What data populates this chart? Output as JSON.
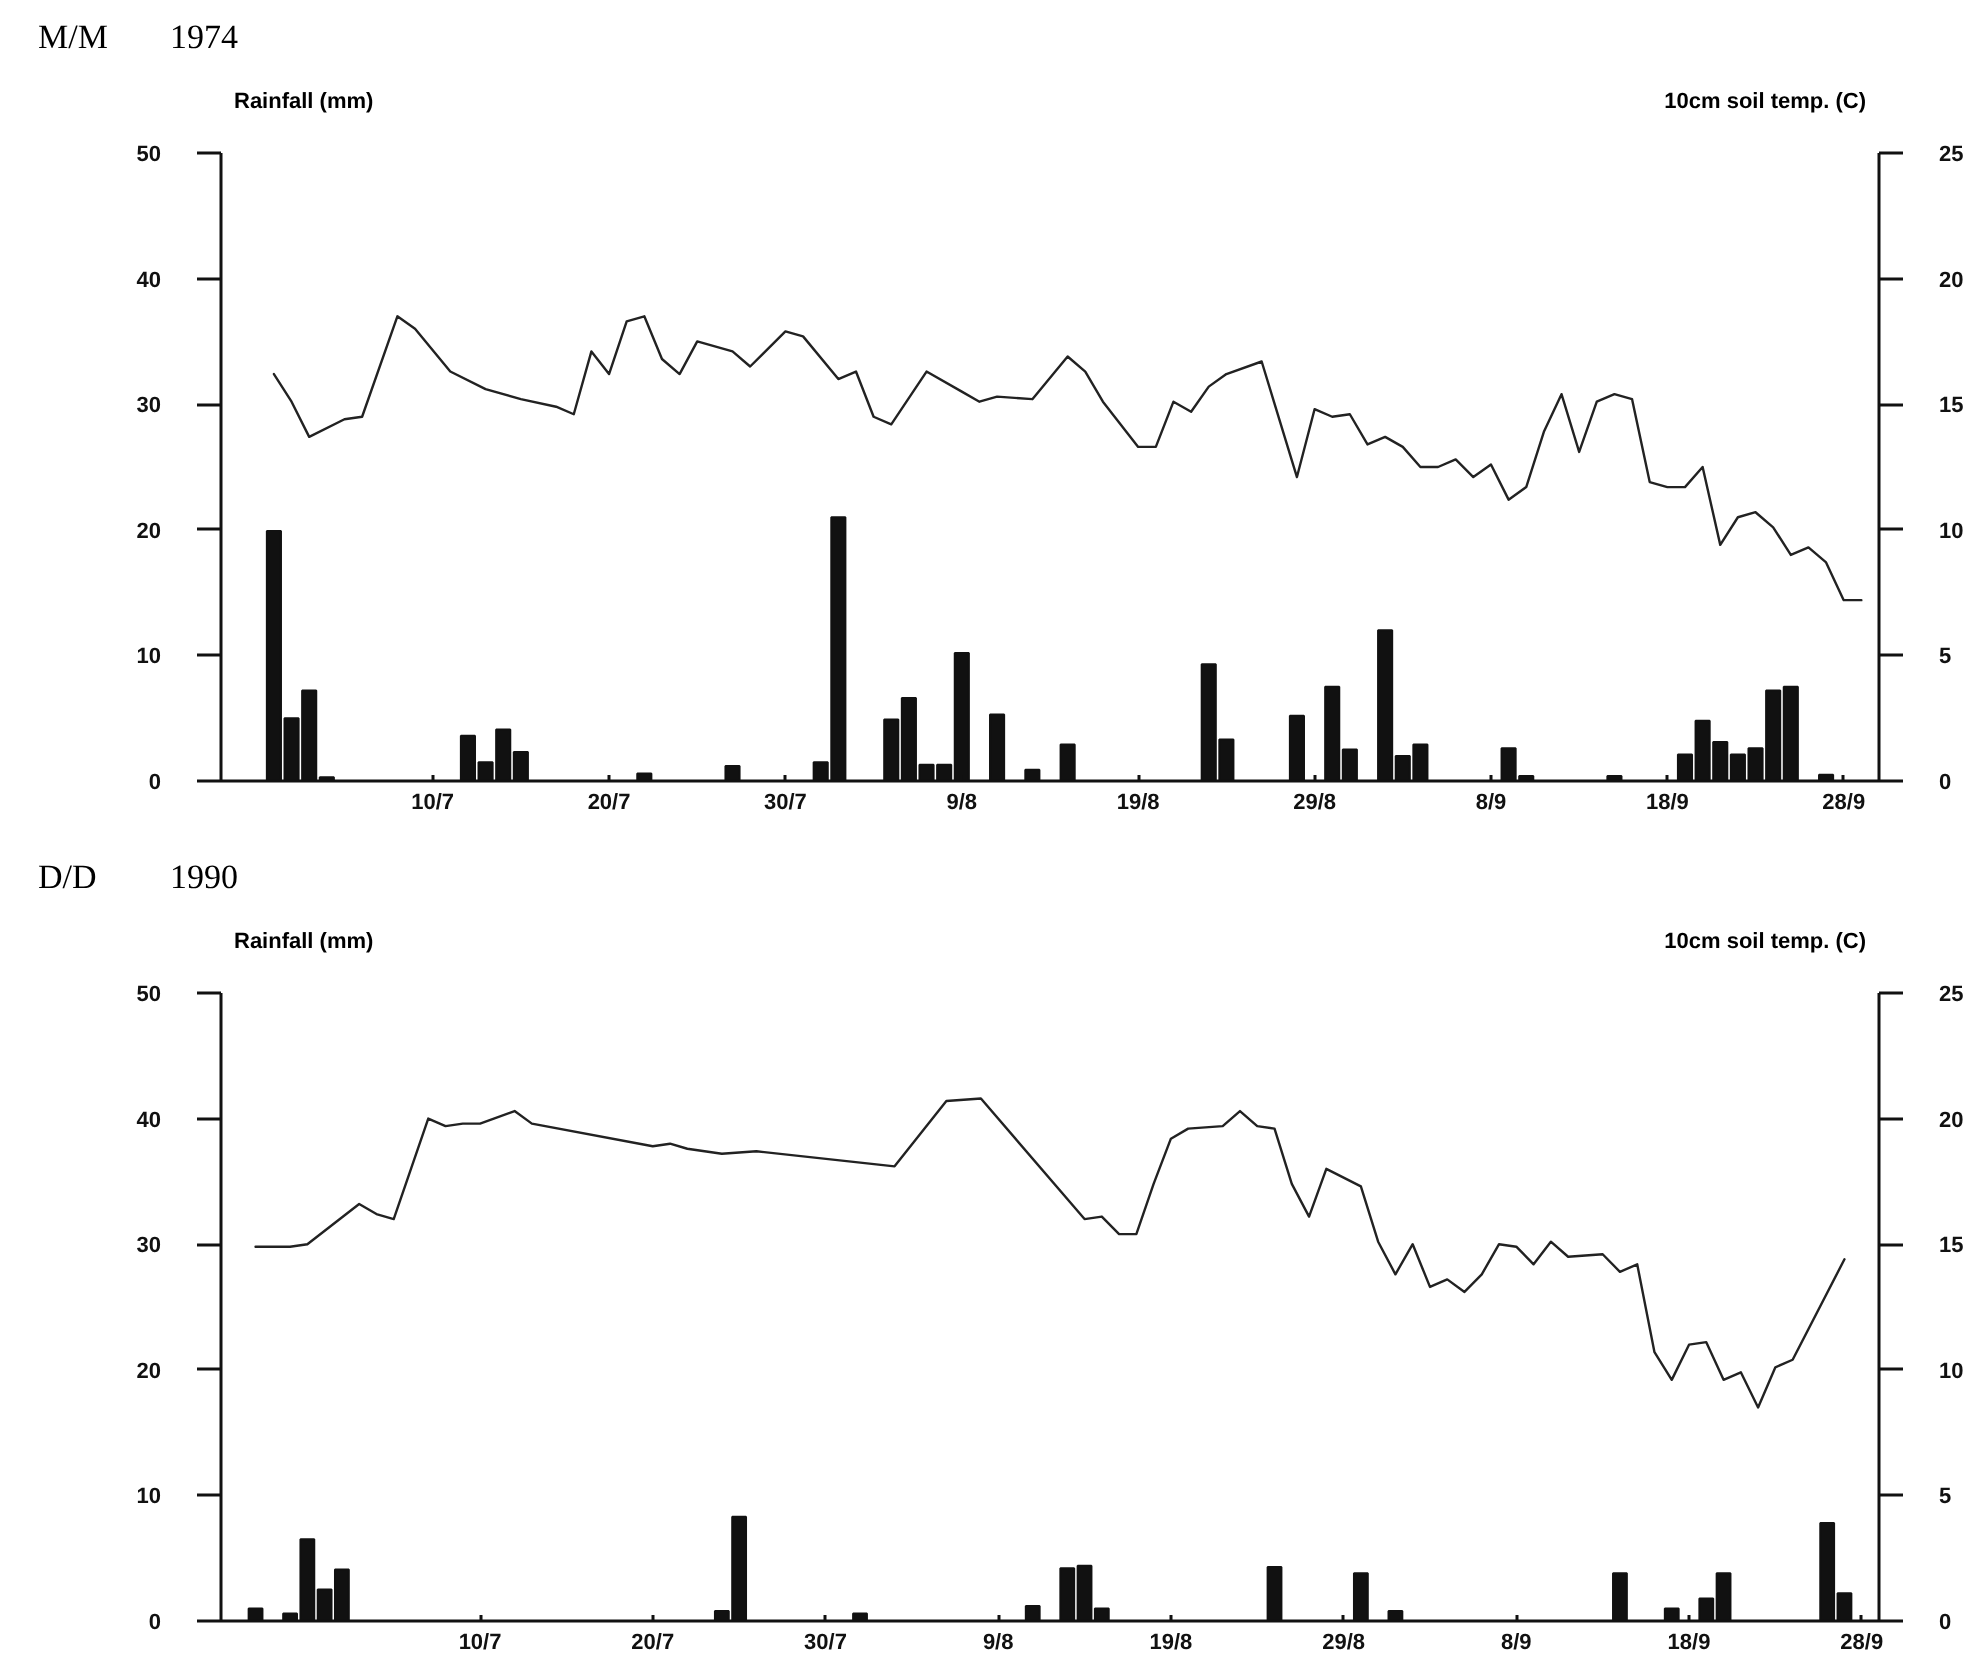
{
  "chart_data": [
    {
      "type": "bar",
      "title": "M/M",
      "subtitle": "1974",
      "ylabel": "Rainfall (mm)",
      "y2label": "10cm soil temp. (C)",
      "xlim": [
        "1974-06-28",
        "1974-09-30"
      ],
      "xticks": [
        {
          "value": "1974-07-10",
          "label": "10/7"
        },
        {
          "value": "1974-07-20",
          "label": "20/7"
        },
        {
          "value": "1974-07-30",
          "label": "30/7"
        },
        {
          "value": "1974-08-09",
          "label": "9/8"
        },
        {
          "value": "1974-08-19",
          "label": "19/8"
        },
        {
          "value": "1974-08-29",
          "label": "29/8"
        },
        {
          "value": "1974-09-08",
          "label": "8/9"
        },
        {
          "value": "1974-09-18",
          "label": "18/9"
        },
        {
          "value": "1974-09-28",
          "label": "28/9"
        }
      ],
      "ylim": [
        0,
        50
      ],
      "yticks": [
        0,
        10,
        20,
        30,
        40,
        50
      ],
      "y2lim": [
        0,
        25
      ],
      "y2ticks": [
        0,
        5,
        10,
        15,
        20,
        25
      ],
      "series": [
        {
          "color": "#111111",
          "x": [
            "1974-07-01",
            "1974-07-02",
            "1974-07-03",
            "1974-07-04",
            "1974-07-12",
            "1974-07-13",
            "1974-07-14",
            "1974-07-15",
            "1974-07-22",
            "1974-07-27",
            "1974-08-01",
            "1974-08-02",
            "1974-08-05",
            "1974-08-06",
            "1974-08-07",
            "1974-08-08",
            "1974-08-09",
            "1974-08-11",
            "1974-08-13",
            "1974-08-15",
            "1974-08-23",
            "1974-08-24",
            "1974-08-28",
            "1974-08-30",
            "1974-08-31",
            "1974-09-02",
            "1974-09-03",
            "1974-09-04",
            "1974-09-09",
            "1974-09-10",
            "1974-09-15",
            "1974-09-19",
            "1974-09-20",
            "1974-09-21",
            "1974-09-22",
            "1974-09-23",
            "1974-09-24",
            "1974-09-25",
            "1974-09-27"
          ],
          "values": [
            19.9,
            5.0,
            7.2,
            0.3,
            3.6,
            1.5,
            4.1,
            2.3,
            0.6,
            1.2,
            1.5,
            21.0,
            4.9,
            6.6,
            1.3,
            1.3,
            10.2,
            5.3,
            0.9,
            2.9,
            9.3,
            3.3,
            5.2,
            7.5,
            2.5,
            12.0,
            2.0,
            2.9,
            2.6,
            0.4,
            0.4,
            2.1,
            4.8,
            3.1,
            2.1,
            2.6,
            7.2,
            7.5,
            0.5
          ]
        },
        {
          "type": "line",
          "axis": "y2",
          "color": "#222222",
          "x": [
            "1974-07-01",
            "1974-07-02",
            "1974-07-03",
            "1974-07-05",
            "1974-07-06",
            "1974-07-08",
            "1974-07-09",
            "1974-07-11",
            "1974-07-13",
            "1974-07-15",
            "1974-07-17",
            "1974-07-18",
            "1974-07-19",
            "1974-07-20",
            "1974-07-21",
            "1974-07-22",
            "1974-07-23",
            "1974-07-24",
            "1974-07-25",
            "1974-07-27",
            "1974-07-28",
            "1974-07-30",
            "1974-07-31",
            "1974-08-02",
            "1974-08-03",
            "1974-08-04",
            "1974-08-05",
            "1974-08-07",
            "1974-08-09",
            "1974-08-10",
            "1974-08-11",
            "1974-08-13",
            "1974-08-15",
            "1974-08-16",
            "1974-08-17",
            "1974-08-19",
            "1974-08-20",
            "1974-08-21",
            "1974-08-22",
            "1974-08-23",
            "1974-08-24",
            "1974-08-26",
            "1974-08-28",
            "1974-08-29",
            "1974-08-30",
            "1974-08-31",
            "1974-09-01",
            "1974-09-02",
            "1974-09-03",
            "1974-09-04",
            "1974-09-05",
            "1974-09-06",
            "1974-09-07",
            "1974-09-08",
            "1974-09-09",
            "1974-09-10",
            "1974-09-11",
            "1974-09-12",
            "1974-09-13",
            "1974-09-14",
            "1974-09-15",
            "1974-09-16",
            "1974-09-17",
            "1974-09-18",
            "1974-09-19",
            "1974-09-20",
            "1974-09-21",
            "1974-09-22",
            "1974-09-23",
            "1974-09-24",
            "1974-09-25",
            "1974-09-26",
            "1974-09-27",
            "1974-09-28",
            "1974-09-29"
          ],
          "values": [
            16.2,
            15.1,
            13.7,
            14.4,
            14.5,
            18.5,
            18.0,
            16.3,
            15.6,
            15.2,
            14.9,
            14.6,
            17.1,
            16.2,
            18.3,
            18.5,
            16.8,
            16.2,
            17.5,
            17.1,
            16.5,
            17.9,
            17.7,
            16.0,
            16.3,
            14.5,
            14.2,
            16.3,
            15.5,
            15.1,
            15.3,
            15.2,
            16.9,
            16.3,
            15.1,
            13.3,
            13.3,
            15.1,
            14.7,
            15.7,
            16.2,
            16.7,
            12.1,
            14.8,
            14.5,
            14.6,
            13.4,
            13.7,
            13.3,
            12.5,
            12.5,
            12.8,
            12.1,
            12.6,
            11.2,
            11.7,
            13.9,
            15.4,
            13.1,
            15.1,
            15.4,
            15.2,
            11.9,
            11.7,
            11.7,
            12.5,
            9.4,
            10.5,
            10.7,
            10.1,
            9.0,
            9.3,
            8.7,
            7.2,
            7.2
          ]
        }
      ]
    },
    {
      "type": "bar",
      "title": "D/D",
      "subtitle": "1990",
      "ylabel": "Rainfall (mm)",
      "y2label": "10cm soil temp. (C)",
      "xlim": [
        "1990-06-25",
        "1990-09-29"
      ],
      "xticks": [
        {
          "value": "1990-07-10",
          "label": "10/7"
        },
        {
          "value": "1990-07-20",
          "label": "20/7"
        },
        {
          "value": "1990-07-30",
          "label": "30/7"
        },
        {
          "value": "1990-08-09",
          "label": "9/8"
        },
        {
          "value": "1990-08-19",
          "label": "19/8"
        },
        {
          "value": "1990-08-29",
          "label": "29/8"
        },
        {
          "value": "1990-09-08",
          "label": "8/9"
        },
        {
          "value": "1990-09-18",
          "label": "18/9"
        },
        {
          "value": "1990-09-28",
          "label": "28/9"
        }
      ],
      "ylim": [
        0,
        50
      ],
      "yticks": [
        0,
        10,
        20,
        30,
        40,
        50
      ],
      "y2lim": [
        0,
        25
      ],
      "y2ticks": [
        0,
        5,
        10,
        15,
        20,
        25
      ],
      "series": [
        {
          "color": "#111111",
          "x": [
            "1990-06-27",
            "1990-06-29",
            "1990-06-30",
            "1990-07-01",
            "1990-07-02",
            "1990-07-24",
            "1990-07-25",
            "1990-08-01",
            "1990-08-11",
            "1990-08-13",
            "1990-08-14",
            "1990-08-15",
            "1990-08-25",
            "1990-08-30",
            "1990-09-01",
            "1990-09-14",
            "1990-09-17",
            "1990-09-19",
            "1990-09-20",
            "1990-09-26",
            "1990-09-27"
          ],
          "values": [
            1.0,
            0.6,
            6.5,
            2.5,
            4.1,
            0.8,
            8.3,
            0.6,
            1.2,
            4.2,
            4.4,
            1.0,
            4.3,
            3.8,
            0.8,
            3.8,
            1.0,
            1.8,
            3.8,
            7.8,
            2.2
          ]
        },
        {
          "type": "line",
          "axis": "y2",
          "color": "#222222",
          "x": [
            "1990-06-27",
            "1990-06-28",
            "1990-06-29",
            "1990-06-30",
            "1990-07-03",
            "1990-07-04",
            "1990-07-05",
            "1990-07-06",
            "1990-07-07",
            "1990-07-08",
            "1990-07-09",
            "1990-07-10",
            "1990-07-12",
            "1990-07-13",
            "1990-07-20",
            "1990-07-21",
            "1990-07-22",
            "1990-07-24",
            "1990-07-26",
            "1990-08-03",
            "1990-08-06",
            "1990-08-08",
            "1990-08-14",
            "1990-08-15",
            "1990-08-16",
            "1990-08-17",
            "1990-08-18",
            "1990-08-19",
            "1990-08-20",
            "1990-08-22",
            "1990-08-23",
            "1990-08-24",
            "1990-08-25",
            "1990-08-26",
            "1990-08-27",
            "1990-08-28",
            "1990-08-30",
            "1990-08-31",
            "1990-09-01",
            "1990-09-02",
            "1990-09-03",
            "1990-09-04",
            "1990-09-05",
            "1990-09-06",
            "1990-09-07",
            "1990-09-08",
            "1990-09-09",
            "1990-09-10",
            "1990-09-11",
            "1990-09-13",
            "1990-09-14",
            "1990-09-15",
            "1990-09-16",
            "1990-09-17",
            "1990-09-18",
            "1990-09-19",
            "1990-09-20",
            "1990-09-21",
            "1990-09-22",
            "1990-09-23",
            "1990-09-24",
            "1990-09-27"
          ],
          "values": [
            14.9,
            14.9,
            14.9,
            15.0,
            16.6,
            16.2,
            16.0,
            18.0,
            20.0,
            19.7,
            19.8,
            19.8,
            20.3,
            19.8,
            18.9,
            19.0,
            18.8,
            18.6,
            18.7,
            18.1,
            20.7,
            20.8,
            16.0,
            16.1,
            15.4,
            15.4,
            17.4,
            19.2,
            19.6,
            19.7,
            20.3,
            19.7,
            19.6,
            17.4,
            16.1,
            18.0,
            17.3,
            15.1,
            13.8,
            15.0,
            13.3,
            13.6,
            13.1,
            13.8,
            15.0,
            14.9,
            14.2,
            15.1,
            14.5,
            14.6,
            13.9,
            14.2,
            10.7,
            9.6,
            11.0,
            11.1,
            9.6,
            9.9,
            8.5,
            10.1,
            10.4,
            14.4
          ]
        }
      ]
    }
  ]
}
